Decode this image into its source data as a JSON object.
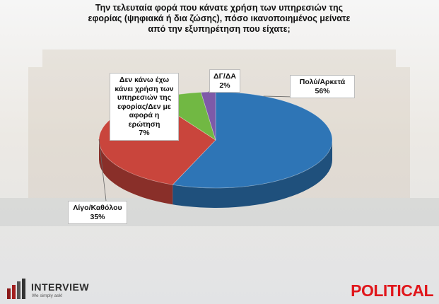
{
  "chart_data": {
    "type": "pie",
    "title": "Την τελευταία φορά που κάνατε χρήση των υπηρεσιών της εφορίας (ψηφιακά ή δια ζώσης), πόσο ικανοποιημένος μείνατε από την εξυπηρέτηση που είχατε;",
    "slices": [
      {
        "label": "Πολύ/Αρκετά",
        "value": 56,
        "value_label": "56%",
        "color": "#2e75b6"
      },
      {
        "label": "Λίγο/Καθόλου",
        "value": 35,
        "value_label": "35%",
        "color": "#c9453c"
      },
      {
        "label": "Δεν κάνω έχω κάνει χρήση των υπηρεσιών της εφορίας/Δεν με αφορά η ερώτηση",
        "value": 7,
        "value_label": "7%",
        "color": "#71b843"
      },
      {
        "label": "ΔΓ/ΔΑ",
        "value": 2,
        "value_label": "2%",
        "color": "#7e5aa8"
      }
    ]
  },
  "logos": {
    "left_brand": "INTERVIEW",
    "left_tagline": "We simply ask!",
    "right_brand": "POLITICAL"
  }
}
